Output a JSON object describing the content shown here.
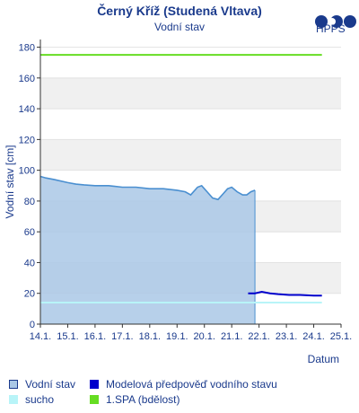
{
  "title": "Černý Kříž (Studená Vltava)",
  "subtitle": "Vodní stav",
  "logo_text": "HPPS",
  "chart_data": {
    "type": "line",
    "ylabel": "Vodní stav [cm]",
    "xlabel": "Datum",
    "ylim": [
      0,
      185
    ],
    "y_ticks": [
      0,
      20,
      40,
      60,
      80,
      100,
      120,
      140,
      160,
      180
    ],
    "x_ticks": [
      "14.1.",
      "15.1.",
      "16.1.",
      "17.1.",
      "18.1.",
      "19.1.",
      "20.1.",
      "21.1.",
      "22.1.",
      "23.1.",
      "24.1.",
      "25.1."
    ],
    "xlim_days": [
      14,
      25
    ],
    "observed": {
      "name": "Vodní stav",
      "x_day": [
        14.0,
        14.2,
        14.5,
        15.0,
        15.3,
        15.6,
        16.0,
        16.5,
        17.0,
        17.5,
        18.0,
        18.5,
        19.0,
        19.3,
        19.5,
        19.75,
        19.9,
        20.1,
        20.3,
        20.5,
        20.7,
        20.85,
        21.0,
        21.2,
        21.4,
        21.55,
        21.7,
        21.85
      ],
      "y": [
        96,
        95,
        94,
        92,
        91,
        90.5,
        90,
        90,
        89,
        89,
        88,
        88,
        87,
        86,
        84,
        89,
        90,
        86,
        82,
        81,
        85,
        88,
        89,
        86,
        84,
        84,
        86,
        87
      ]
    },
    "forecast": {
      "name": "Modelová předpověď vodního stavu",
      "x_day": [
        21.6,
        21.85,
        22.1,
        22.4,
        22.7,
        23.1,
        23.5,
        24.0,
        24.3
      ],
      "y": [
        20,
        20,
        21,
        20,
        19.5,
        19,
        19,
        18.5,
        18.5
      ]
    },
    "thresholds": [
      {
        "name": "sucho",
        "value": 14,
        "color": "#b8f4f8"
      },
      {
        "name": "1.SPA (bdělost)",
        "value": 175,
        "color": "#66dd22"
      }
    ],
    "colors": {
      "observed_fill": "#aac8e6",
      "observed_line": "#4a8fd0",
      "forecast_line": "#0000cc",
      "band": "#f0f0f0"
    }
  },
  "legend": [
    {
      "label": "Vodní stav",
      "color": "#aac8e6",
      "border": "#1a3a8c"
    },
    {
      "label": "Modelová předpověď vodního stavu",
      "color": "#0000cc"
    },
    {
      "label": "sucho",
      "color": "#b8f4f8"
    },
    {
      "label": "1.SPA (bdělost)",
      "color": "#66dd22"
    }
  ]
}
